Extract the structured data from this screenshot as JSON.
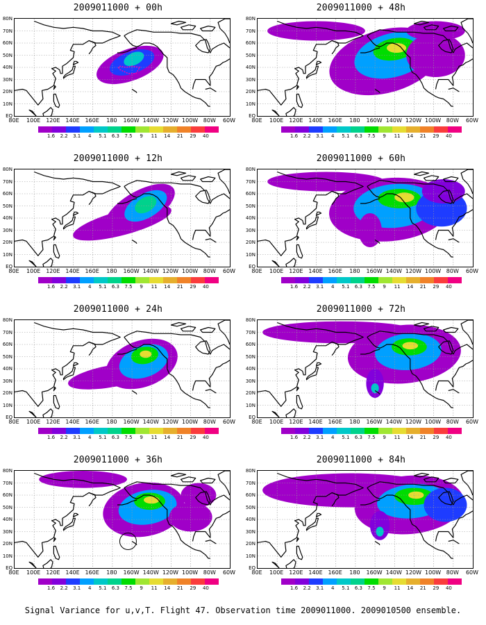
{
  "panels": [
    {
      "title": "2009011000 + 00h",
      "lead": "00h",
      "ring": false
    },
    {
      "title": "2009011000 + 48h",
      "lead": "48h",
      "ring": false
    },
    {
      "title": "2009011000 + 12h",
      "lead": "12h",
      "ring": false
    },
    {
      "title": "2009011000 + 60h",
      "lead": "60h",
      "ring": false
    },
    {
      "title": "2009011000 + 24h",
      "lead": "24h",
      "ring": false
    },
    {
      "title": "2009011000 + 72h",
      "lead": "72h",
      "ring": false
    },
    {
      "title": "2009011000 + 36h",
      "lead": "36h",
      "ring": true
    },
    {
      "title": "2009011000 + 84h",
      "lead": "84h",
      "ring": false
    }
  ],
  "axes": {
    "lat_labels": [
      "80N",
      "70N",
      "60N",
      "50N",
      "40N",
      "30N",
      "20N",
      "10N",
      "EQ"
    ],
    "lon_labels": [
      "80E",
      "100E",
      "120E",
      "140E",
      "160E",
      "180",
      "160W",
      "140W",
      "120W",
      "100W",
      "80W",
      "60W"
    ],
    "lat_range": [
      0,
      80
    ],
    "lon_range_deg_east": [
      80,
      300
    ]
  },
  "colorbar": {
    "labels": [
      "1.6",
      "2.2",
      "3.1",
      "4",
      "5.1",
      "6.3",
      "7.5",
      "9",
      "11",
      "14",
      "21",
      "29",
      "40"
    ],
    "colors": [
      "#a000c8",
      "#8200dc",
      "#1e3cff",
      "#00a0ff",
      "#00c8c8",
      "#00d28c",
      "#00dc00",
      "#a0e632",
      "#e6dc32",
      "#e6af2d",
      "#f08228",
      "#fa3c3c",
      "#f00082"
    ]
  },
  "caption": "Signal Variance for u,v,T. Flight 47. Observation time 2009011000. 2009010500 ensemble."
}
